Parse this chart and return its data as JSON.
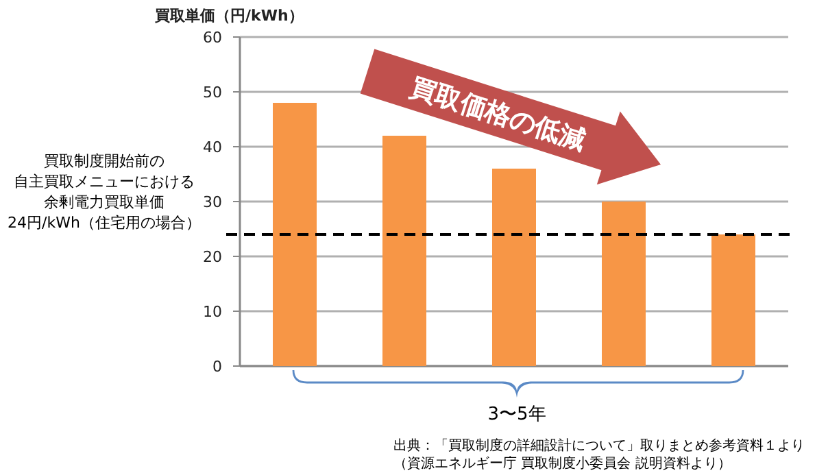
{
  "chart_data": {
    "type": "bar",
    "ylabel": "買取単価（円/kWh）",
    "categories": [
      null,
      null,
      null,
      null,
      null
    ],
    "values": [
      48,
      42,
      36,
      30,
      24
    ],
    "color": "#f79646",
    "ylim": [
      0,
      60
    ],
    "yticks": [
      0,
      10,
      20,
      30,
      40,
      50,
      60
    ],
    "grid": "y",
    "ref_lines": [
      {
        "axis": "y",
        "value": 24,
        "color": "#000000",
        "line_style": "dashed"
      }
    ],
    "annotations": [
      "買取制度開始前の",
      "自主買取メニューにおける",
      "余剰電力買取単価",
      "24円/kWh（住宅用の場合）",
      "買取価格の低減",
      "3〜5年",
      "出典：「買取制度の詳細設計について」取りまとめ参考資料１より",
      "（資源エネルギー庁 買取制度小委員会 説明資料より）"
    ]
  }
}
